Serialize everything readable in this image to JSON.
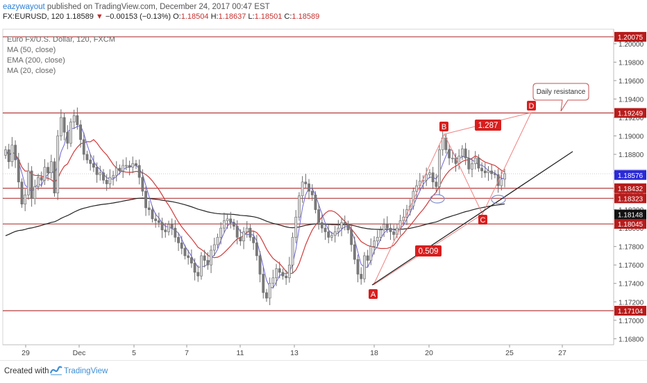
{
  "header": {
    "author": "eazywayout",
    "published": " published on TradingView.com, December 24, 2017 00:47 EST",
    "symbol": "FX:EURUSD, 120",
    "last": "1.18589",
    "arrow": "▼",
    "change": "−0.00153 (−0.13%)",
    "o_label": "O:",
    "o_val": "1.18504",
    "h_label": "H:",
    "h_val": "1.18637",
    "l_label": "L:",
    "l_val": "1.18501",
    "c_label": "C:",
    "c_val": "1.18589"
  },
  "legend": {
    "title": "Euro Fx/U.S. Dollar, 120, FXCM",
    "ma50": "MA (50, close)",
    "ema200": "EMA (200, close)",
    "ma20": "MA (20, close)"
  },
  "footer": {
    "created": "Created with",
    "brand": "TradingView"
  },
  "colors": {
    "up": "#b5b5b5",
    "down": "#8a8a8a",
    "level": "#b33a3a",
    "ema200": "#222222",
    "ma50": "#d03a3a",
    "ma20": "#6b63d8",
    "pattern": "#f08080",
    "trendline": "#222222",
    "tag_red": "#d81e1e"
  },
  "chart_data": {
    "type": "candlestick",
    "x_tick_labels": [
      "29",
      "Dec",
      "5",
      "7",
      "11",
      "13",
      "18",
      "20",
      "25",
      "27"
    ],
    "y_ticks": [
      "1.20000",
      "1.19800",
      "1.19600",
      "1.19400",
      "1.19200",
      "1.19000",
      "1.18800",
      "1.18600",
      "1.18400",
      "1.18200",
      "1.18000",
      "1.17800",
      "1.17600",
      "1.17400",
      "1.17200",
      "1.17000",
      "1.16800"
    ],
    "ylim": [
      1.1665,
      1.2023
    ],
    "candles_close": [
      1.1885,
      1.1872,
      1.189,
      1.1874,
      1.185,
      1.1826,
      1.1836,
      1.1862,
      1.1832,
      1.1845,
      1.1855,
      1.1852,
      1.1866,
      1.186,
      1.1872,
      1.1838,
      1.19,
      1.192,
      1.1904,
      1.1892,
      1.1915,
      1.1922,
      1.1912,
      1.1896,
      1.188,
      1.1874,
      1.187,
      1.1866,
      1.1858,
      1.186,
      1.1852,
      1.1848,
      1.1855,
      1.1857,
      1.1865,
      1.1862,
      1.1868,
      1.1868,
      1.1866,
      1.187,
      1.1868,
      1.1855,
      1.184,
      1.1822,
      1.182,
      1.181,
      1.1808,
      1.1806,
      1.1798,
      1.1796,
      1.1804,
      1.18,
      1.179,
      1.1784,
      1.1778,
      1.177,
      1.1768,
      1.1762,
      1.1752,
      1.1748,
      1.177,
      1.1765,
      1.176,
      1.1776,
      1.1782,
      1.179,
      1.18,
      1.1808,
      1.181,
      1.1806,
      1.1802,
      1.179,
      1.1786,
      1.1796,
      1.18,
      1.179,
      1.1784,
      1.177,
      1.175,
      1.173,
      1.1724,
      1.174,
      1.1746,
      1.1756,
      1.1752,
      1.1748,
      1.1746,
      1.176,
      1.179,
      1.1812,
      1.1835,
      1.185,
      1.1848,
      1.184,
      1.1836,
      1.182,
      1.1806,
      1.18,
      1.1796,
      1.179,
      1.1792,
      1.1796,
      1.18,
      1.1806,
      1.1804,
      1.1798,
      1.1782,
      1.1766,
      1.175,
      1.1745,
      1.177,
      1.1765,
      1.178,
      1.1786,
      1.179,
      1.1798,
      1.1804,
      1.18,
      1.1796,
      1.1793,
      1.18,
      1.1808,
      1.1812,
      1.182,
      1.1824,
      1.184,
      1.1846,
      1.1851,
      1.1852,
      1.1858,
      1.186,
      1.185,
      1.1845,
      1.1885,
      1.1898,
      1.1885,
      1.1876,
      1.1876,
      1.187,
      1.1878,
      1.1886,
      1.1876,
      1.1864,
      1.187,
      1.1876,
      1.1865,
      1.1862,
      1.186,
      1.1862,
      1.1859,
      1.1858,
      1.1846,
      1.1853,
      1.1859
    ],
    "levels": [
      {
        "label": "1.20075",
        "value": 1.20075,
        "style": "red"
      },
      {
        "label": "1.19249",
        "value": 1.19249,
        "style": "red"
      },
      {
        "label": "1.18589",
        "value": 1.18589,
        "style": "grey"
      },
      {
        "label": "1.18576",
        "value": 1.18576,
        "style": "blue"
      },
      {
        "label": "1.18432",
        "value": 1.18432,
        "style": "red"
      },
      {
        "label": "1.18323",
        "value": 1.18323,
        "style": "red"
      },
      {
        "label": "1.18148",
        "value": 1.18148,
        "style": "black"
      },
      {
        "label": "1.18045",
        "value": 1.18045,
        "style": "red"
      },
      {
        "label": "1.17104",
        "value": 1.17104,
        "style": "red"
      }
    ],
    "annotations": {
      "point_a": "A",
      "point_b": "B",
      "point_c": "C",
      "point_d": "D",
      "ratio_bd": "1.287",
      "ratio_ac": "0.509",
      "callout": "Daily resistance"
    }
  }
}
